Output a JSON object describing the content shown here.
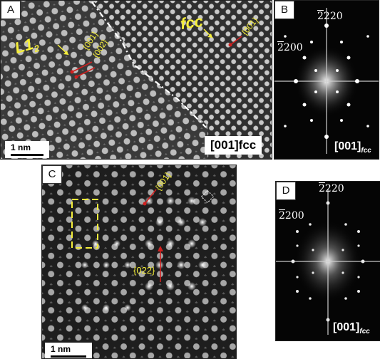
{
  "panels": {
    "A": {
      "label": "A",
      "scale_bar": "1 nm",
      "orientation": "[001]fcc",
      "phase_left": "L1",
      "phase_left_sub": "2",
      "phase_right": "fcc",
      "planes_left_1": "{001}",
      "planes_left_2": "{002}",
      "planes_right": "{001}"
    },
    "B": {
      "label": "B",
      "spot_top": "220",
      "spot_top_bar": "2",
      "spot_left": "200",
      "spot_left_bar": "2",
      "orientation": "[001]",
      "orientation_sub": "fcc"
    },
    "C": {
      "label": "C",
      "scale_bar": "1 nm",
      "planes_1": "{001}",
      "planes_2": "{022}"
    },
    "D": {
      "label": "D",
      "spot_top": "220",
      "spot_top_bar": "2",
      "spot_left": "200",
      "spot_left_bar": "2",
      "orientation": "[001]",
      "orientation_sub": "fcc"
    }
  },
  "colors": {
    "annotation_yellow": "#f5ee3a",
    "arrow_red": "#d0201f",
    "label_white": "#ffffff",
    "dash_line": "#ffffff"
  }
}
